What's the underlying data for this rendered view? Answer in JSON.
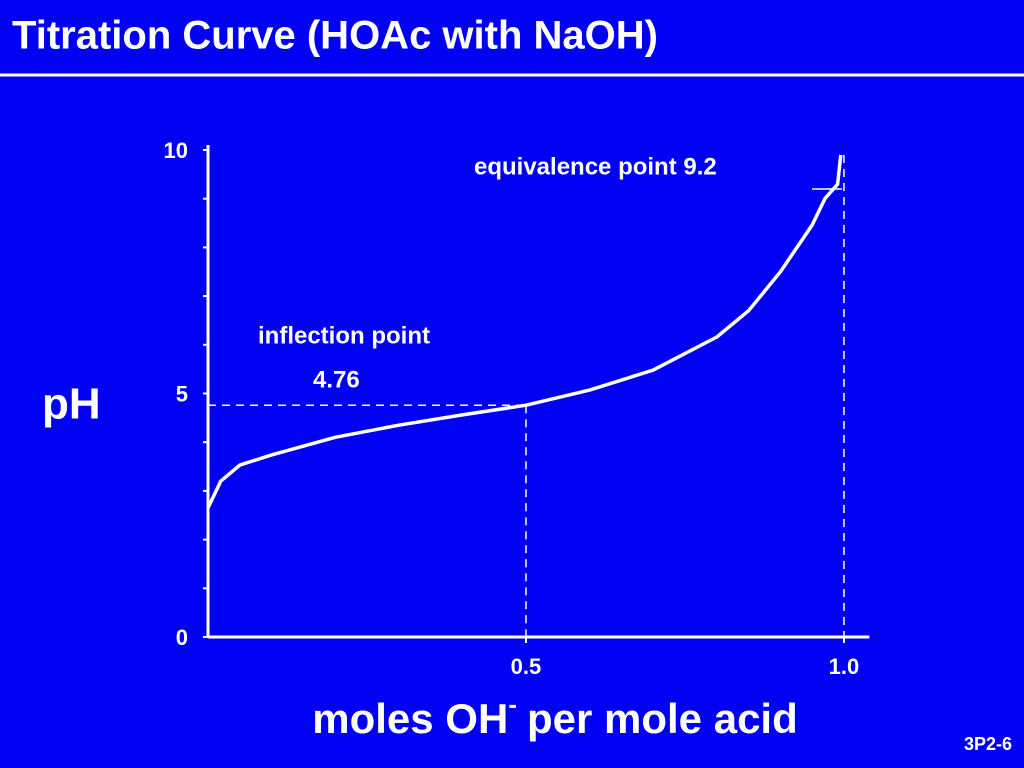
{
  "chart_data": {
    "type": "line",
    "title": "Titration Curve (HOAc with NaOH)",
    "y_label": "pH",
    "x_label": [
      "moles OH",
      "-",
      "per mole acid"
    ],
    "x": [
      0,
      0.02,
      0.05,
      0.1,
      0.2,
      0.3,
      0.4,
      0.5,
      0.6,
      0.7,
      0.8,
      0.85,
      0.9,
      0.95,
      0.97,
      0.99,
      0.995
    ],
    "values": [
      2.65,
      3.2,
      3.53,
      3.74,
      4.1,
      4.35,
      4.56,
      4.76,
      5.07,
      5.48,
      6.16,
      6.7,
      7.5,
      8.46,
      9.0,
      9.3,
      9.9
    ],
    "color": "#ffffff",
    "xlim": [
      0,
      1.04
    ],
    "ylim": [
      0,
      10
    ],
    "xticks": [
      0.5,
      {
        "value": 1,
        "label": "1.0"
      }
    ],
    "yticks": [
      0,
      5,
      10
    ],
    "yminor_ticks": [
      1,
      2,
      3,
      4,
      6,
      7,
      8,
      9
    ],
    "inflection": {
      "x": 0.5,
      "y": 4.76
    },
    "equivalence": {
      "x": 1,
      "y": 9.2
    },
    "annotations": [
      "equivalence point  9.2",
      "inflection point",
      "4.76"
    ]
  },
  "slide_number": "3P2-6"
}
